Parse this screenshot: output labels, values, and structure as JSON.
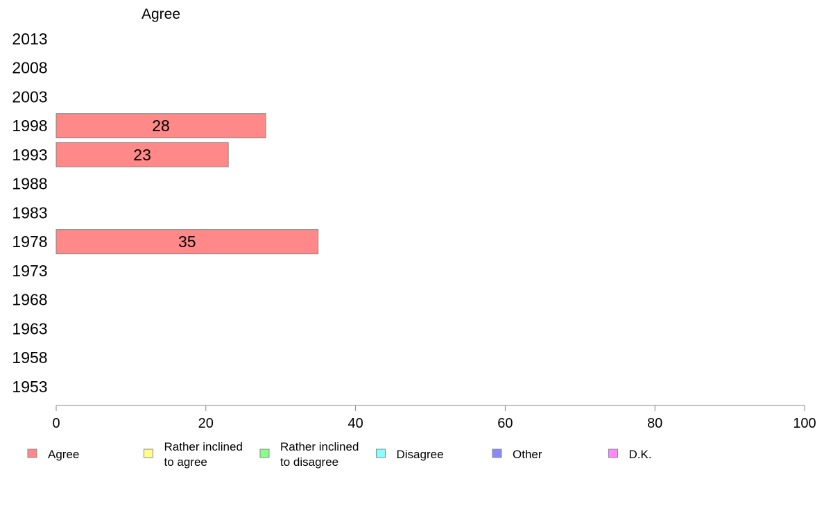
{
  "chart_data": {
    "type": "bar",
    "orientation": "horizontal",
    "title": "Agree",
    "categories": [
      "2013",
      "2008",
      "2003",
      "1998",
      "1993",
      "1988",
      "1983",
      "1978",
      "1973",
      "1968",
      "1963",
      "1958",
      "1953"
    ],
    "series": [
      {
        "name": "Agree",
        "values": [
          null,
          null,
          null,
          28,
          23,
          null,
          null,
          35,
          null,
          null,
          null,
          null,
          null
        ]
      }
    ],
    "data_labels": [
      null,
      null,
      null,
      "28",
      "23",
      null,
      null,
      "35",
      null,
      null,
      null,
      null,
      null
    ],
    "xlim": [
      0,
      100
    ],
    "xticks": [
      "0",
      "20",
      "40",
      "60",
      "80",
      "100"
    ],
    "xlabel": "",
    "ylabel": "",
    "grid": false,
    "legend_position": "bottom",
    "legend": [
      {
        "label_lines": [
          "Agree"
        ],
        "color": "#ff8888"
      },
      {
        "label_lines": [
          "Rather inclined",
          "to agree"
        ],
        "color": "#ffff88"
      },
      {
        "label_lines": [
          "Rather inclined",
          "to disagree"
        ],
        "color": "#88ff88"
      },
      {
        "label_lines": [
          "Disagree"
        ],
        "color": "#88ffff"
      },
      {
        "label_lines": [
          "Other"
        ],
        "color": "#8888ff"
      },
      {
        "label_lines": [
          "D.K."
        ],
        "color": "#ff88ff"
      }
    ],
    "bar_color": "#ff8888",
    "bar_stroke": "#888888",
    "axis_color": "#888888"
  }
}
